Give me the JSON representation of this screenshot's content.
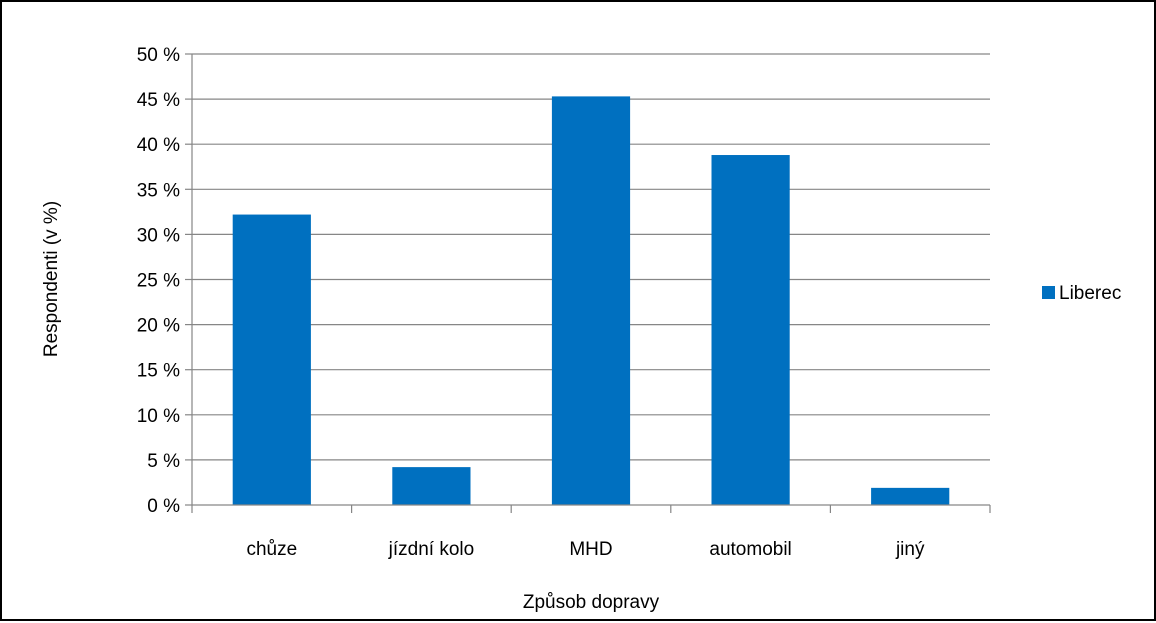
{
  "chart_data": {
    "type": "bar",
    "title": "",
    "xlabel": "Způsob dopravy",
    "ylabel": "Respondenti (v %)",
    "categories": [
      "chůze",
      "jízdní kolo",
      "MHD",
      "automobil",
      "jiný"
    ],
    "series": [
      {
        "name": "Liberec",
        "color": "#0070C0",
        "values": [
          32.2,
          4.2,
          45.3,
          38.8,
          1.9
        ]
      }
    ],
    "ylim": [
      0,
      50
    ],
    "yticks": [
      0,
      5,
      10,
      15,
      20,
      25,
      30,
      35,
      40,
      45,
      50
    ],
    "ytick_suffix": " %",
    "grid": true,
    "legend": "right"
  }
}
